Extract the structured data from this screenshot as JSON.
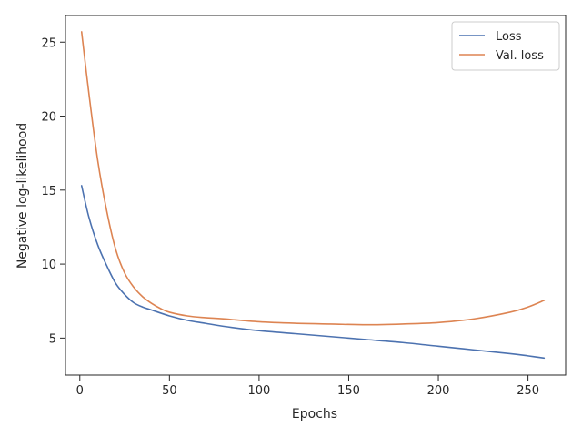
{
  "chart_data": {
    "type": "line",
    "xlabel": "Epochs",
    "ylabel": "Negative log-likelihood",
    "xlim": [
      -8,
      271
    ],
    "ylim": [
      2.5,
      26.8
    ],
    "xticks": [
      0,
      50,
      100,
      150,
      200,
      250
    ],
    "yticks": [
      5,
      10,
      15,
      20,
      25
    ],
    "grid": false,
    "legend_position": "top-right",
    "series": [
      {
        "name": "Loss",
        "color": "#4c72b0",
        "x": [
          1,
          5,
          10,
          15,
          20,
          25,
          30,
          35,
          40,
          50,
          60,
          70,
          80,
          100,
          120,
          140,
          160,
          180,
          200,
          220,
          240,
          250,
          259
        ],
        "values": [
          15.3,
          13.2,
          11.3,
          9.9,
          8.7,
          7.95,
          7.4,
          7.1,
          6.9,
          6.5,
          6.2,
          6.0,
          5.8,
          5.5,
          5.3,
          5.1,
          4.9,
          4.7,
          4.45,
          4.2,
          3.95,
          3.8,
          3.65
        ]
      },
      {
        "name": "Val. loss",
        "color": "#dd8452",
        "x": [
          1,
          5,
          10,
          15,
          20,
          25,
          30,
          35,
          40,
          45,
          50,
          60,
          70,
          80,
          100,
          120,
          140,
          160,
          180,
          200,
          220,
          240,
          250,
          259
        ],
        "values": [
          25.7,
          21.6,
          17.0,
          13.6,
          11.0,
          9.4,
          8.45,
          7.8,
          7.35,
          7.0,
          6.75,
          6.5,
          6.38,
          6.3,
          6.1,
          6.0,
          5.95,
          5.9,
          5.95,
          6.05,
          6.3,
          6.75,
          7.1,
          7.55
        ]
      }
    ]
  }
}
